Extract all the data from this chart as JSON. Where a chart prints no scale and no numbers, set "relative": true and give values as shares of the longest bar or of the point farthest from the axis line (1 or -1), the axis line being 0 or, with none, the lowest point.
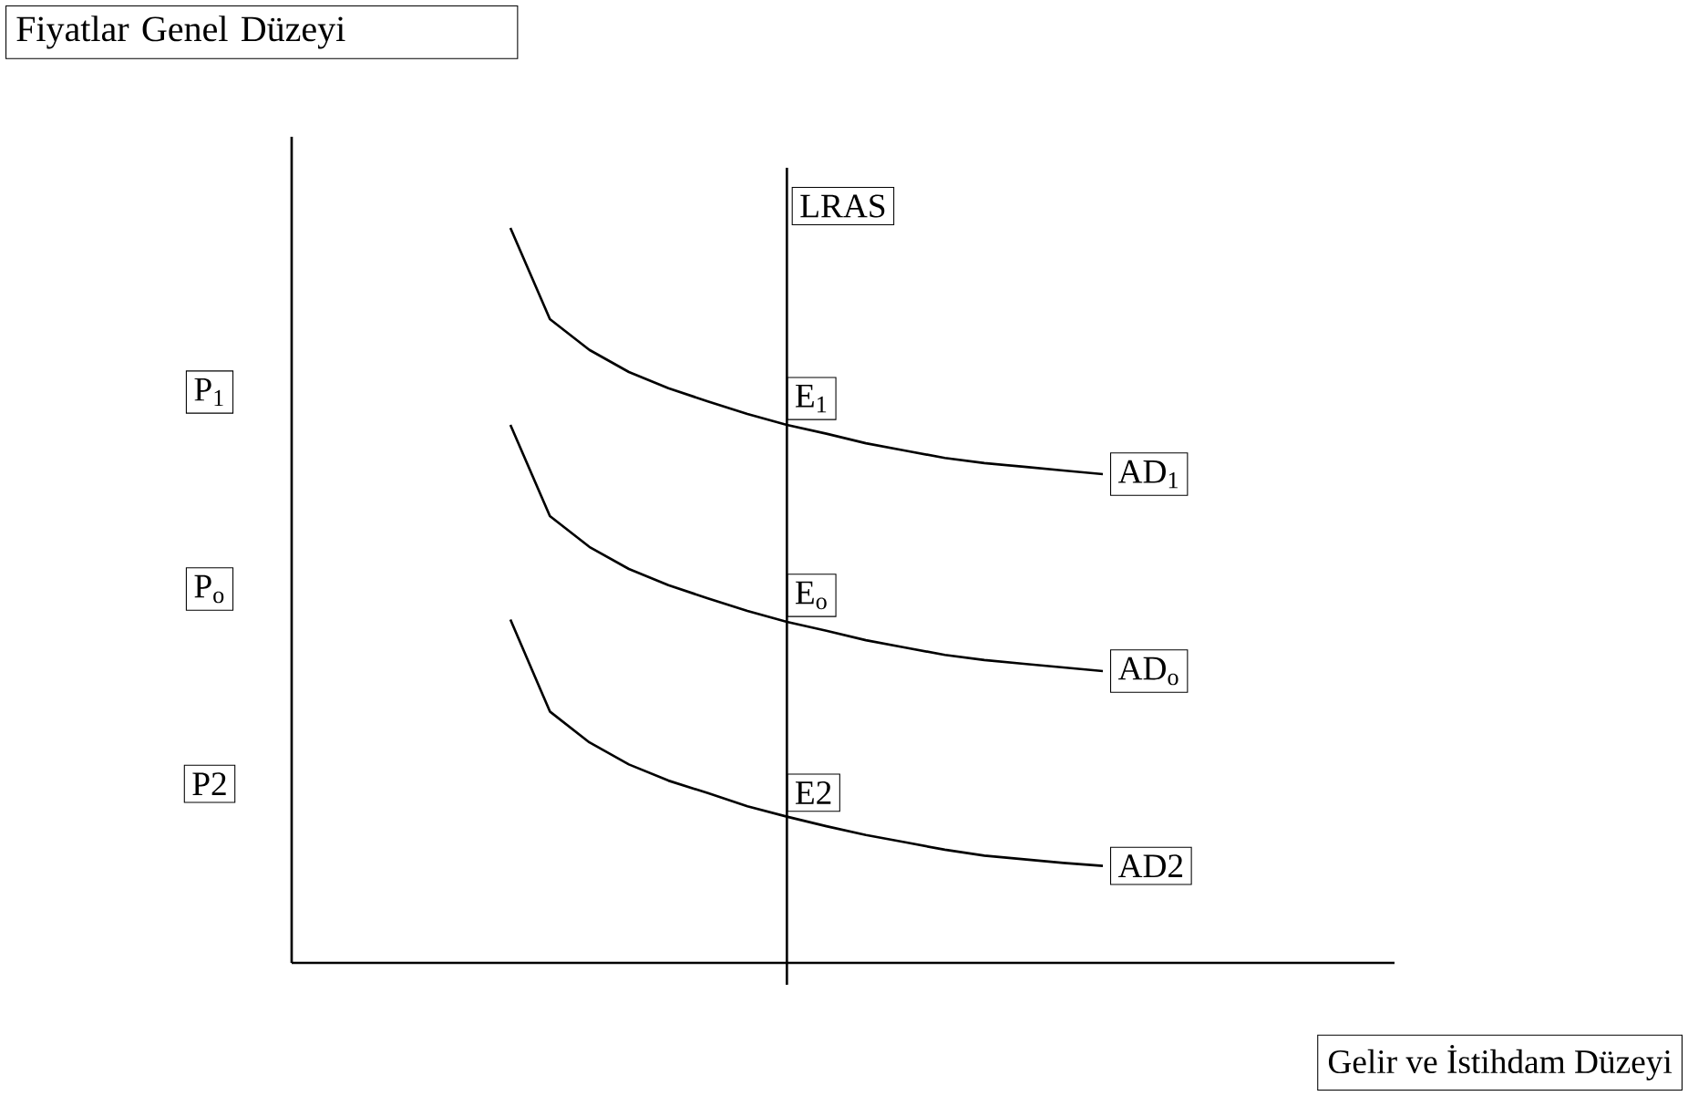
{
  "chart_data": {
    "type": "line",
    "relative": true,
    "categories": [
      null,
      null,
      null,
      null,
      null,
      null,
      null,
      null,
      null,
      null,
      null,
      null,
      null,
      null,
      null,
      null
    ],
    "marker": "none",
    "line_style": "solid",
    "series": [
      {
        "name": "AD$_{1}$",
        "color": "#000000",
        "values": [
          1,
          0.876,
          0.834,
          0.804,
          0.782,
          0.764,
          0.747,
          0.732,
          0.72,
          0.707,
          0.697,
          0.687,
          0.68,
          0.675,
          0.67,
          0.665
        ]
      },
      {
        "name": "AD$_{o}$",
        "color": "#000000",
        "values": [
          0.732,
          0.608,
          0.566,
          0.536,
          0.514,
          0.496,
          0.479,
          0.464,
          0.452,
          0.439,
          0.429,
          0.419,
          0.412,
          0.407,
          0.402,
          0.397
        ]
      },
      {
        "name": "AD2",
        "color": "#000000",
        "values": [
          0.467,
          0.342,
          0.3,
          0.27,
          0.248,
          0.231,
          0.213,
          0.199,
          0.186,
          0.174,
          0.164,
          0.154,
          0.146,
          0.141,
          0.136,
          0.132
        ]
      }
    ],
    "annotations": [
      "Fiyatlar Genel Düzeyi",
      "Gelir ve İstihdam Düzeyi",
      "LRAS",
      "P$_{1}$",
      "P$_{o}$",
      "P2",
      "E$_{1}$",
      "E$_{o}$",
      "E2"
    ]
  }
}
